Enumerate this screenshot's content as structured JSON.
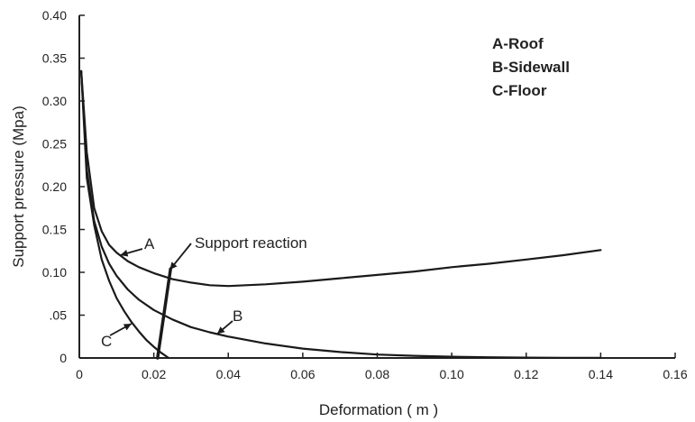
{
  "chart_data": {
    "type": "line",
    "title": "",
    "xlabel": "Deformation ( m )",
    "ylabel": "Support pressure (Mpa)",
    "xlim": [
      0,
      0.16
    ],
    "ylim": [
      0,
      0.4
    ],
    "x_ticks": [
      {
        "value": 0,
        "label": "0"
      },
      {
        "value": 0.02,
        "label": "0.02"
      },
      {
        "value": 0.04,
        "label": "0.04"
      },
      {
        "value": 0.06,
        "label": "0.06"
      },
      {
        "value": 0.08,
        "label": "0.08"
      },
      {
        "value": 0.1,
        "label": "0.10"
      },
      {
        "value": 0.12,
        "label": "0.12"
      },
      {
        "value": 0.14,
        "label": "0.14"
      },
      {
        "value": 0.16,
        "label": "0.16"
      }
    ],
    "y_ticks": [
      {
        "value": 0,
        "label": "0"
      },
      {
        "value": 0.05,
        "label": ".05"
      },
      {
        "value": 0.1,
        "label": "0.10"
      },
      {
        "value": 0.15,
        "label": "0.15"
      },
      {
        "value": 0.2,
        "label": "0.20"
      },
      {
        "value": 0.25,
        "label": "0.25"
      },
      {
        "value": 0.3,
        "label": "0.30"
      },
      {
        "value": 0.35,
        "label": "0.35"
      },
      {
        "value": 0.4,
        "label": "0.40"
      }
    ],
    "grid": false,
    "legend_position": "top-right",
    "legend_lines": [
      "A-Roof",
      "B-Sidewall",
      "C-Floor"
    ],
    "series": [
      {
        "name": "A",
        "x": [
          0.0005,
          0.002,
          0.004,
          0.006,
          0.008,
          0.01,
          0.013,
          0.016,
          0.02,
          0.025,
          0.03,
          0.035,
          0.04,
          0.05,
          0.06,
          0.07,
          0.08,
          0.09,
          0.1,
          0.11,
          0.12,
          0.13,
          0.14
        ],
        "y": [
          0.335,
          0.24,
          0.175,
          0.148,
          0.132,
          0.123,
          0.113,
          0.106,
          0.099,
          0.092,
          0.088,
          0.085,
          0.084,
          0.086,
          0.089,
          0.093,
          0.097,
          0.101,
          0.106,
          0.11,
          0.115,
          0.12,
          0.126
        ]
      },
      {
        "name": "B",
        "x": [
          0.0005,
          0.002,
          0.004,
          0.006,
          0.008,
          0.01,
          0.013,
          0.016,
          0.02,
          0.025,
          0.03,
          0.035,
          0.04,
          0.05,
          0.06,
          0.07,
          0.08,
          0.09,
          0.1,
          0.11,
          0.12,
          0.13,
          0.14
        ],
        "y": [
          0.335,
          0.22,
          0.16,
          0.13,
          0.11,
          0.096,
          0.08,
          0.068,
          0.056,
          0.045,
          0.036,
          0.03,
          0.025,
          0.017,
          0.011,
          0.007,
          0.004,
          0.0025,
          0.0015,
          0.0008,
          0.0004,
          0.0002,
          0.0001
        ]
      },
      {
        "name": "C",
        "x": [
          0.0005,
          0.002,
          0.004,
          0.006,
          0.008,
          0.01,
          0.012,
          0.014,
          0.016,
          0.018,
          0.02,
          0.022,
          0.024
        ],
        "y": [
          0.335,
          0.21,
          0.155,
          0.115,
          0.09,
          0.07,
          0.055,
          0.042,
          0.031,
          0.021,
          0.013,
          0.006,
          0.0
        ]
      },
      {
        "name": "Support reaction",
        "x": [
          0.021,
          0.0245
        ],
        "y": [
          0.0,
          0.104
        ]
      }
    ],
    "annotations": [
      {
        "text": "A",
        "series": "A"
      },
      {
        "text": "B",
        "series": "B"
      },
      {
        "text": "C",
        "series": "C"
      },
      {
        "text": "Support reaction",
        "series": "Support reaction"
      }
    ]
  }
}
